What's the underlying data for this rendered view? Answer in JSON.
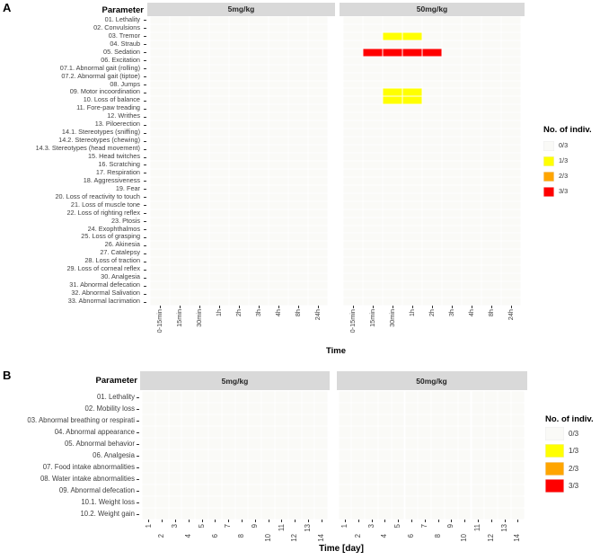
{
  "figure": {
    "legend_title": "No. of indiv.",
    "legend_items": [
      {
        "label": "0/3",
        "color": "#fafaf7"
      },
      {
        "label": "1/3",
        "color": "#ffff00"
      },
      {
        "label": "2/3",
        "color": "#ffa500"
      },
      {
        "label": "3/3",
        "color": "#ff0000"
      }
    ],
    "strip_color": "#d9d9d9"
  },
  "chart_data": [
    {
      "type": "heatmap",
      "panel": "A",
      "panel_label": "A",
      "ylabel": "Parameter",
      "xlabel": "Time",
      "facets": [
        "5mg/kg",
        "50mg/kg"
      ],
      "x": [
        "0-15min",
        "15min",
        "30min",
        "1h",
        "2h",
        "3h",
        "4h",
        "8h",
        "24h"
      ],
      "rows": [
        "01. Lethality",
        "02. Convulsions",
        "03. Tremor",
        "04. Straub",
        "05. Sedation",
        "06. Excitation",
        "07.1. Abnormal gait (rolling)",
        "07.2. Abnormal gait (tiptoe)",
        "08. Jumps",
        "09. Motor incoordination",
        "10. Loss of balance",
        "11. Fore-paw treading",
        "12. Writhes",
        "13. Piloerection",
        "14.1. Stereotypes (sniffing)",
        "14.2. Stereotypes (chewing)",
        "14.3. Stereotypes (head movement)",
        "15. Head twitches",
        "16. Scratching",
        "17. Respiration",
        "18. Aggressiveness",
        "19. Fear",
        "20. Loss of reactivity to touch",
        "21. Loss of muscle tone",
        "22. Loss of righting reflex",
        "23. Ptosis",
        "24. Exophthalmos",
        "25. Loss of grasping",
        "26. Akinesia",
        "27. Catalepsy",
        "28. Loss of traction",
        "29. Loss of corneal reflex",
        "30. Analgesia",
        "31. Abnormal defecation",
        "32. Abnormal Salivation",
        "33. Abnormal lacrimation"
      ],
      "default_value": "0/3",
      "cells": [
        {
          "facet": "50mg/kg",
          "row": "03. Tremor",
          "x": "30min",
          "value": "1/3"
        },
        {
          "facet": "50mg/kg",
          "row": "03. Tremor",
          "x": "1h",
          "value": "1/3"
        },
        {
          "facet": "50mg/kg",
          "row": "05. Sedation",
          "x": "15min",
          "value": "3/3"
        },
        {
          "facet": "50mg/kg",
          "row": "05. Sedation",
          "x": "30min",
          "value": "3/3"
        },
        {
          "facet": "50mg/kg",
          "row": "05. Sedation",
          "x": "1h",
          "value": "3/3"
        },
        {
          "facet": "50mg/kg",
          "row": "05. Sedation",
          "x": "2h",
          "value": "3/3"
        },
        {
          "facet": "50mg/kg",
          "row": "09. Motor incoordination",
          "x": "30min",
          "value": "1/3"
        },
        {
          "facet": "50mg/kg",
          "row": "09. Motor incoordination",
          "x": "1h",
          "value": "1/3"
        },
        {
          "facet": "50mg/kg",
          "row": "10. Loss of balance",
          "x": "30min",
          "value": "1/3"
        },
        {
          "facet": "50mg/kg",
          "row": "10. Loss of balance",
          "x": "1h",
          "value": "1/3"
        }
      ]
    },
    {
      "type": "heatmap",
      "panel": "B",
      "panel_label": "B",
      "ylabel": "Parameter",
      "xlabel": "Time [day]",
      "facets": [
        "5mg/kg",
        "50mg/kg"
      ],
      "x": [
        "1",
        "2",
        "3",
        "4",
        "5",
        "6",
        "7",
        "8",
        "9",
        "10",
        "11",
        "12",
        "13",
        "14"
      ],
      "rows": [
        "01. Lethality",
        "02. Mobility loss",
        "03. Abnormal breathing or respirati",
        "04. Abnormal appearance",
        "05. Abnormal behavior",
        "06. Analgesia",
        "07. Food intake abnormalities",
        "08. Water intake abnormalities",
        "09. Abnormal defecation",
        "10.1. Weight loss",
        "10.2. Weight gain"
      ],
      "default_value": "0/3",
      "cells": []
    }
  ]
}
